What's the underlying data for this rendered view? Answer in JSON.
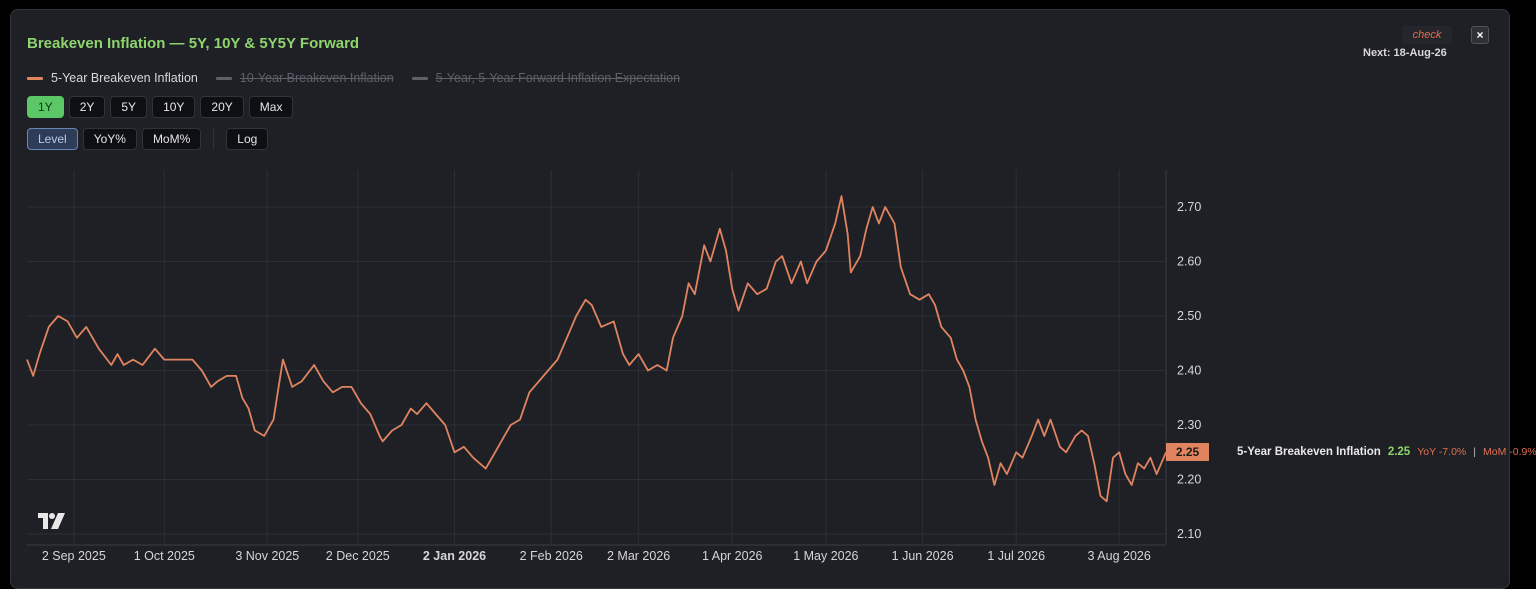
{
  "header": {
    "title": "Breakeven Inflation — 5Y, 10Y & 5Y5Y Forward",
    "check_label": "check",
    "next_label": "Next: 18-Aug-26",
    "close_label": "×"
  },
  "legend": [
    {
      "label": "5-Year Breakeven Inflation",
      "color": "#e08460",
      "active": true
    },
    {
      "label": "10-Year Breakeven Inflation",
      "color": "#5d6068",
      "active": false
    },
    {
      "label": "5-Year, 5-Year Forward Inflation Expectation",
      "color": "#5d6068",
      "active": false
    }
  ],
  "range_buttons": [
    "1Y",
    "2Y",
    "5Y",
    "10Y",
    "20Y",
    "Max"
  ],
  "range_selected": "1Y",
  "mode_buttons": [
    "Level",
    "YoY%",
    "MoM%"
  ],
  "mode_selected": "Level",
  "scale_button": "Log",
  "status": {
    "current_value": "2.25",
    "series_name": "5-Year Breakeven Inflation",
    "yoy": "YoY -7.0%",
    "separator": "|",
    "mom": "MoM -0.9%"
  },
  "colors": {
    "line": "#e08460",
    "accent_green": "#5cc766",
    "grid": "#2c2f36"
  },
  "icons": {
    "logo": "tradingview-logo-icon"
  },
  "chart_data": {
    "type": "line",
    "series": [
      {
        "name": "5-Year Breakeven Inflation",
        "color": "#e08460",
        "points": [
          [
            "2025-08-18",
            2.42
          ],
          [
            "2025-08-20",
            2.39
          ],
          [
            "2025-08-22",
            2.43
          ],
          [
            "2025-08-25",
            2.48
          ],
          [
            "2025-08-28",
            2.5
          ],
          [
            "2025-08-31",
            2.49
          ],
          [
            "2025-09-03",
            2.46
          ],
          [
            "2025-09-06",
            2.48
          ],
          [
            "2025-09-10",
            2.44
          ],
          [
            "2025-09-14",
            2.41
          ],
          [
            "2025-09-16",
            2.43
          ],
          [
            "2025-09-18",
            2.41
          ],
          [
            "2025-09-21",
            2.42
          ],
          [
            "2025-09-24",
            2.41
          ],
          [
            "2025-09-28",
            2.44
          ],
          [
            "2025-10-01",
            2.42
          ],
          [
            "2025-10-06",
            2.42
          ],
          [
            "2025-10-10",
            2.42
          ],
          [
            "2025-10-13",
            2.4
          ],
          [
            "2025-10-16",
            2.37
          ],
          [
            "2025-10-18",
            2.38
          ],
          [
            "2025-10-21",
            2.39
          ],
          [
            "2025-10-24",
            2.39
          ],
          [
            "2025-10-26",
            2.35
          ],
          [
            "2025-10-28",
            2.33
          ],
          [
            "2025-10-30",
            2.29
          ],
          [
            "2025-11-02",
            2.28
          ],
          [
            "2025-11-05",
            2.31
          ],
          [
            "2025-11-08",
            2.42
          ],
          [
            "2025-11-11",
            2.37
          ],
          [
            "2025-11-14",
            2.38
          ],
          [
            "2025-11-18",
            2.41
          ],
          [
            "2025-11-21",
            2.38
          ],
          [
            "2025-11-24",
            2.36
          ],
          [
            "2025-11-27",
            2.37
          ],
          [
            "2025-11-30",
            2.37
          ],
          [
            "2025-12-03",
            2.34
          ],
          [
            "2025-12-06",
            2.32
          ],
          [
            "2025-12-09",
            2.28
          ],
          [
            "2025-12-10",
            2.27
          ],
          [
            "2025-12-13",
            2.29
          ],
          [
            "2025-12-16",
            2.3
          ],
          [
            "2025-12-19",
            2.33
          ],
          [
            "2025-12-21",
            2.32
          ],
          [
            "2025-12-24",
            2.34
          ],
          [
            "2025-12-27",
            2.32
          ],
          [
            "2025-12-30",
            2.3
          ],
          [
            "2026-01-02",
            2.25
          ],
          [
            "2026-01-05",
            2.26
          ],
          [
            "2026-01-08",
            2.24
          ],
          [
            "2026-01-12",
            2.22
          ],
          [
            "2026-01-15",
            2.25
          ],
          [
            "2026-01-18",
            2.28
          ],
          [
            "2026-01-20",
            2.3
          ],
          [
            "2026-01-23",
            2.31
          ],
          [
            "2026-01-26",
            2.36
          ],
          [
            "2026-01-29",
            2.38
          ],
          [
            "2026-02-01",
            2.4
          ],
          [
            "2026-02-04",
            2.42
          ],
          [
            "2026-02-07",
            2.46
          ],
          [
            "2026-02-10",
            2.5
          ],
          [
            "2026-02-13",
            2.53
          ],
          [
            "2026-02-15",
            2.52
          ],
          [
            "2026-02-18",
            2.48
          ],
          [
            "2026-02-22",
            2.49
          ],
          [
            "2026-02-25",
            2.43
          ],
          [
            "2026-02-27",
            2.41
          ],
          [
            "2026-03-02",
            2.43
          ],
          [
            "2026-03-05",
            2.4
          ],
          [
            "2026-03-08",
            2.41
          ],
          [
            "2026-03-11",
            2.4
          ],
          [
            "2026-03-13",
            2.46
          ],
          [
            "2026-03-16",
            2.5
          ],
          [
            "2026-03-18",
            2.56
          ],
          [
            "2026-03-20",
            2.54
          ],
          [
            "2026-03-23",
            2.63
          ],
          [
            "2026-03-25",
            2.6
          ],
          [
            "2026-03-28",
            2.66
          ],
          [
            "2026-03-30",
            2.62
          ],
          [
            "2026-04-01",
            2.55
          ],
          [
            "2026-04-03",
            2.51
          ],
          [
            "2026-04-06",
            2.56
          ],
          [
            "2026-04-09",
            2.54
          ],
          [
            "2026-04-12",
            2.55
          ],
          [
            "2026-04-15",
            2.6
          ],
          [
            "2026-04-17",
            2.61
          ],
          [
            "2026-04-20",
            2.56
          ],
          [
            "2026-04-23",
            2.6
          ],
          [
            "2026-04-25",
            2.56
          ],
          [
            "2026-04-28",
            2.6
          ],
          [
            "2026-05-01",
            2.62
          ],
          [
            "2026-05-04",
            2.67
          ],
          [
            "2026-05-06",
            2.72
          ],
          [
            "2026-05-08",
            2.65
          ],
          [
            "2026-05-09",
            2.58
          ],
          [
            "2026-05-12",
            2.61
          ],
          [
            "2026-05-14",
            2.66
          ],
          [
            "2026-05-16",
            2.7
          ],
          [
            "2026-05-18",
            2.67
          ],
          [
            "2026-05-20",
            2.7
          ],
          [
            "2026-05-23",
            2.67
          ],
          [
            "2026-05-25",
            2.59
          ],
          [
            "2026-05-28",
            2.54
          ],
          [
            "2026-05-31",
            2.53
          ],
          [
            "2026-06-03",
            2.54
          ],
          [
            "2026-06-05",
            2.52
          ],
          [
            "2026-06-07",
            2.48
          ],
          [
            "2026-06-10",
            2.46
          ],
          [
            "2026-06-12",
            2.42
          ],
          [
            "2026-06-14",
            2.4
          ],
          [
            "2026-06-16",
            2.37
          ],
          [
            "2026-06-18",
            2.31
          ],
          [
            "2026-06-20",
            2.27
          ],
          [
            "2026-06-22",
            2.24
          ],
          [
            "2026-06-24",
            2.19
          ],
          [
            "2026-06-26",
            2.23
          ],
          [
            "2026-06-28",
            2.21
          ],
          [
            "2026-07-01",
            2.25
          ],
          [
            "2026-07-03",
            2.24
          ],
          [
            "2026-07-06",
            2.28
          ],
          [
            "2026-07-08",
            2.31
          ],
          [
            "2026-07-10",
            2.28
          ],
          [
            "2026-07-12",
            2.31
          ],
          [
            "2026-07-15",
            2.26
          ],
          [
            "2026-07-17",
            2.25
          ],
          [
            "2026-07-20",
            2.28
          ],
          [
            "2026-07-22",
            2.29
          ],
          [
            "2026-07-24",
            2.28
          ],
          [
            "2026-07-26",
            2.23
          ],
          [
            "2026-07-28",
            2.17
          ],
          [
            "2026-07-30",
            2.16
          ],
          [
            "2026-08-01",
            2.24
          ],
          [
            "2026-08-03",
            2.25
          ],
          [
            "2026-08-05",
            2.21
          ],
          [
            "2026-08-07",
            2.19
          ],
          [
            "2026-08-09",
            2.23
          ],
          [
            "2026-08-11",
            2.22
          ],
          [
            "2026-08-13",
            2.24
          ],
          [
            "2026-08-15",
            2.21
          ],
          [
            "2026-08-18",
            2.25
          ]
        ]
      }
    ],
    "x_ticks": [
      {
        "label": "2 Sep 2025",
        "date": "2025-09-02"
      },
      {
        "label": "1 Oct 2025",
        "date": "2025-10-01"
      },
      {
        "label": "3 Nov 2025",
        "date": "2025-11-03"
      },
      {
        "label": "2 Dec 2025",
        "date": "2025-12-02"
      },
      {
        "label": "2 Jan 2026",
        "date": "2026-01-02",
        "bold": true
      },
      {
        "label": "2 Feb 2026",
        "date": "2026-02-02"
      },
      {
        "label": "2 Mar 2026",
        "date": "2026-03-02"
      },
      {
        "label": "1 Apr 2026",
        "date": "2026-04-01"
      },
      {
        "label": "1 May 2026",
        "date": "2026-05-01"
      },
      {
        "label": "1 Jun 2026",
        "date": "2026-06-01"
      },
      {
        "label": "1 Jul 2026",
        "date": "2026-07-01"
      },
      {
        "label": "3 Aug 2026",
        "date": "2026-08-03"
      }
    ],
    "y_ticks": [
      "2.10",
      "2.20",
      "2.30",
      "2.40",
      "2.50",
      "2.60",
      "2.70"
    ],
    "ylim": [
      2.1,
      2.7
    ],
    "xlim": [
      "2025-08-18",
      "2026-08-18"
    ],
    "grid": true
  }
}
